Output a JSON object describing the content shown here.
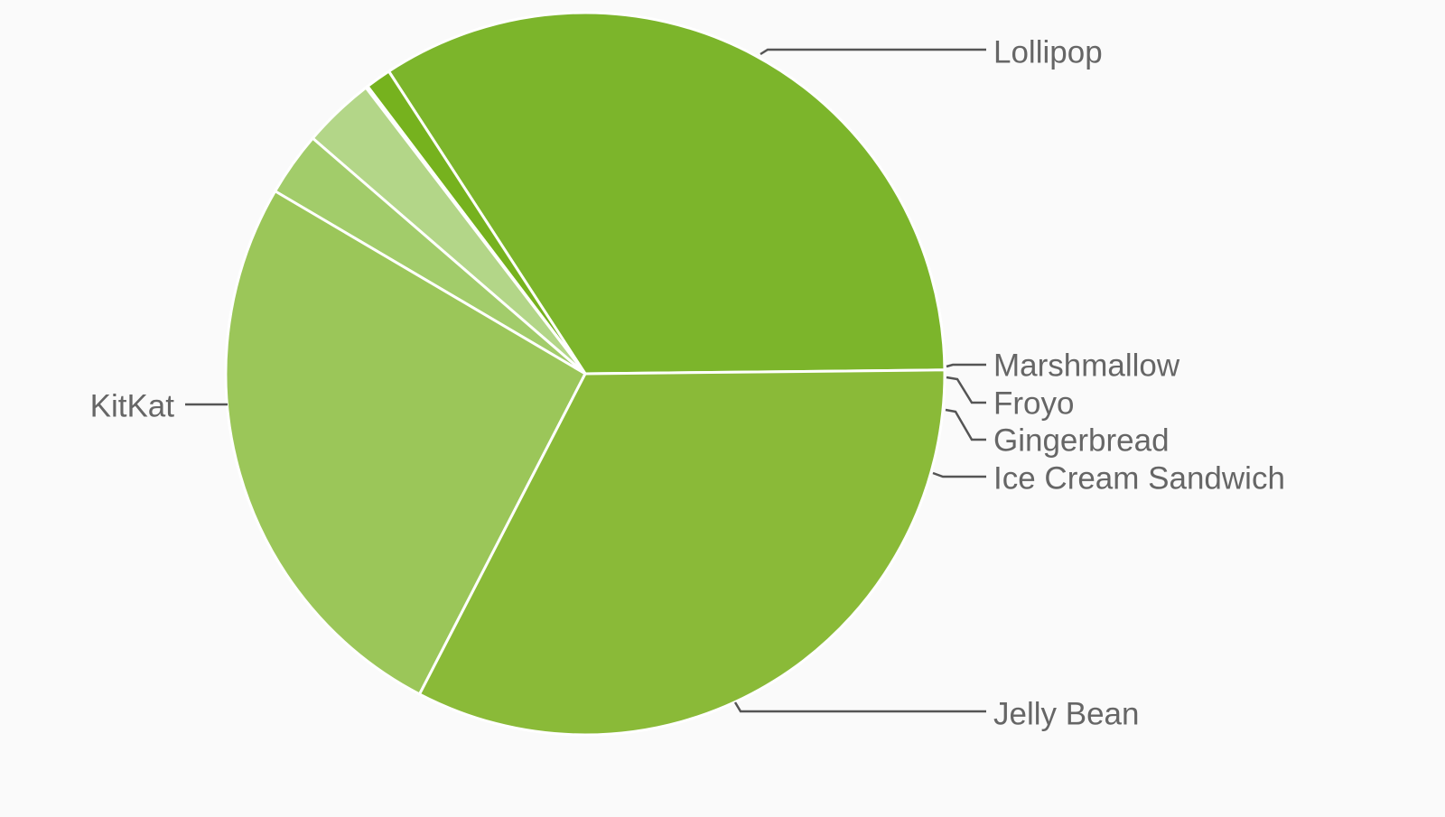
{
  "chart_data": {
    "type": "pie",
    "title": "",
    "legend": "none",
    "slices": [
      {
        "label": "Lollipop",
        "value": 35.6,
        "color": "#7cb52b"
      },
      {
        "label": "Marshmallow",
        "value": 1.2,
        "color": "#76b21e"
      },
      {
        "label": "Froyo",
        "value": 0.1,
        "color": "#c3e09a"
      },
      {
        "label": "Gingerbread",
        "value": 3.4,
        "color": "#b3d688"
      },
      {
        "label": "Ice Cream Sandwich",
        "value": 3.0,
        "color": "#a2cc6a"
      },
      {
        "label": "Jelly Bean",
        "value": 27.0,
        "color": "#9bc659"
      },
      {
        "label": "KitKat",
        "value": 34.3,
        "color": "#8aba38"
      }
    ]
  }
}
